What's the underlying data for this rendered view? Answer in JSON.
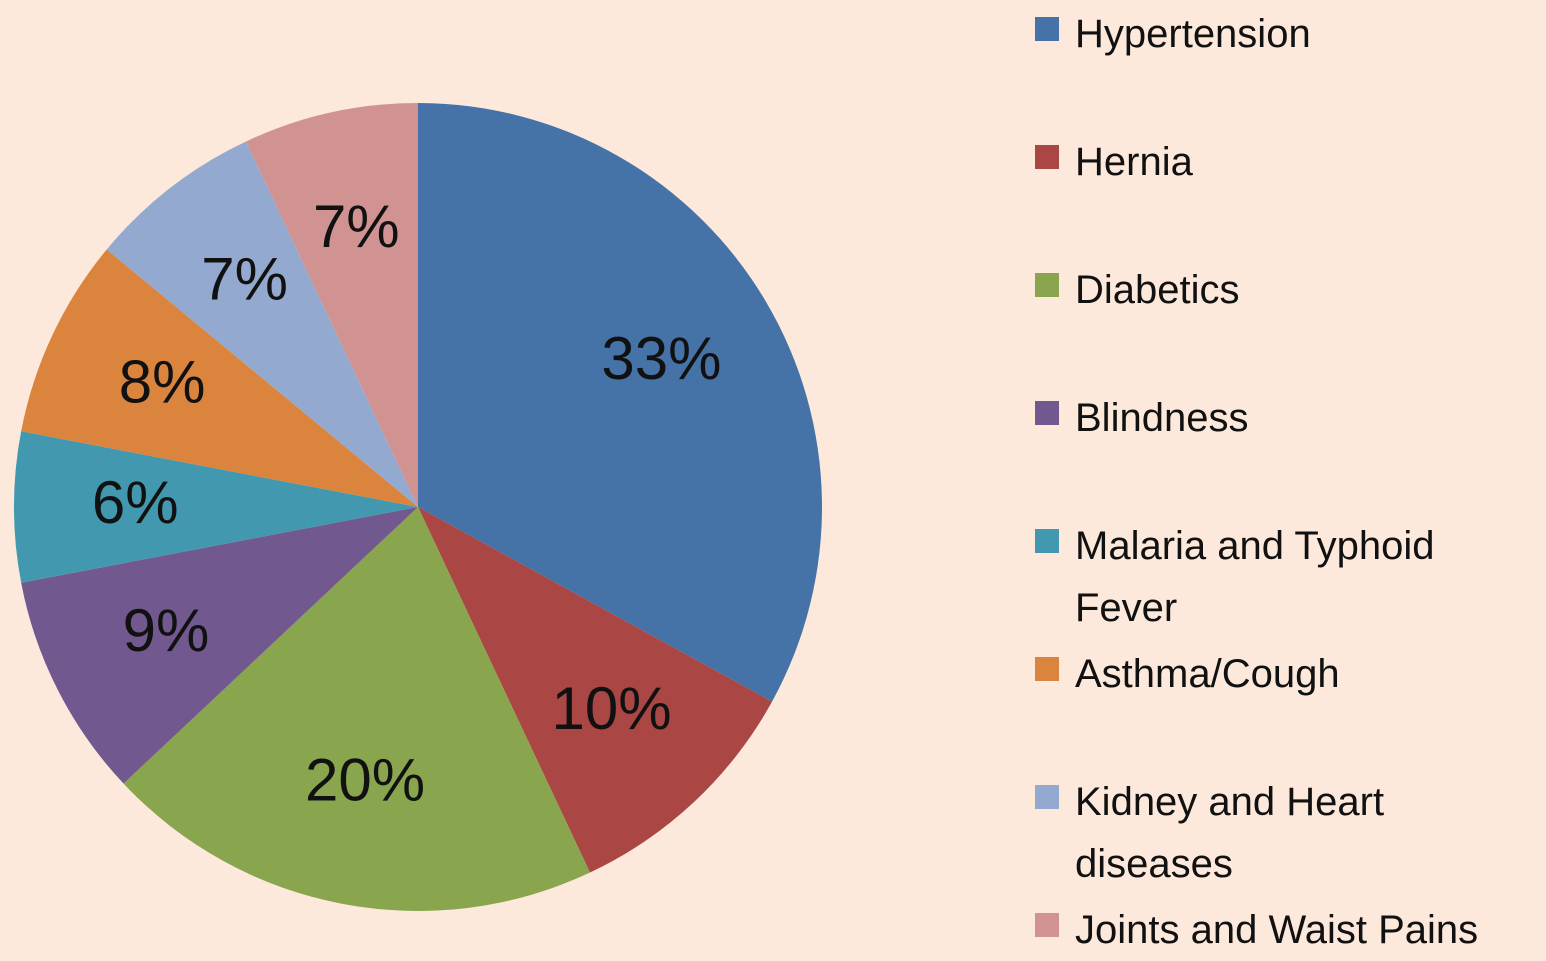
{
  "chart_data": {
    "type": "pie",
    "categories": [
      "Hypertension",
      "Hernia",
      "Diabetics",
      "Blindness",
      "Malaria and Typhoid Fever",
      "Asthma/Cough",
      "Kidney and Heart diseases",
      "Joints and Waist Pains"
    ],
    "values": [
      33,
      10,
      20,
      9,
      6,
      8,
      7,
      7
    ],
    "value_labels": [
      "33%",
      "10%",
      "20%",
      "9%",
      "6%",
      "8%",
      "7%",
      "7%"
    ],
    "colors": [
      "#4572a7",
      "#aa4643",
      "#89a54e",
      "#71588f",
      "#4198af",
      "#db843d",
      "#93a9cf",
      "#d19392"
    ],
    "legend": "right"
  }
}
